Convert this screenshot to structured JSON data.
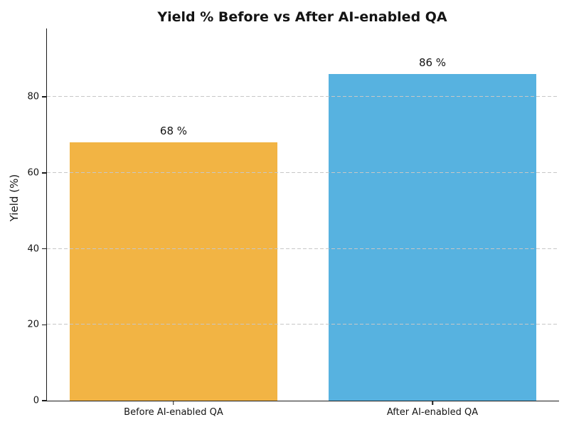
{
  "chart_data": {
    "type": "bar",
    "title": "Yield % Before vs After AI-enabled QA",
    "xlabel": "",
    "ylabel": "Yield (%)",
    "categories": [
      "Before AI-enabled QA",
      "After AI-enabled QA"
    ],
    "values": [
      68,
      86
    ],
    "bar_labels": [
      "68 %",
      "86 %"
    ],
    "bar_colors": [
      "#F2B444",
      "#57B2E0"
    ],
    "ylim": [
      0,
      98
    ],
    "yticks": [
      0,
      20,
      40,
      60,
      80
    ],
    "grid": "horizontal-dashed",
    "grid_color": "#c7c7c7",
    "legend": "none",
    "background_color": "#ffffff",
    "axis_color": "#1a1a1a"
  }
}
